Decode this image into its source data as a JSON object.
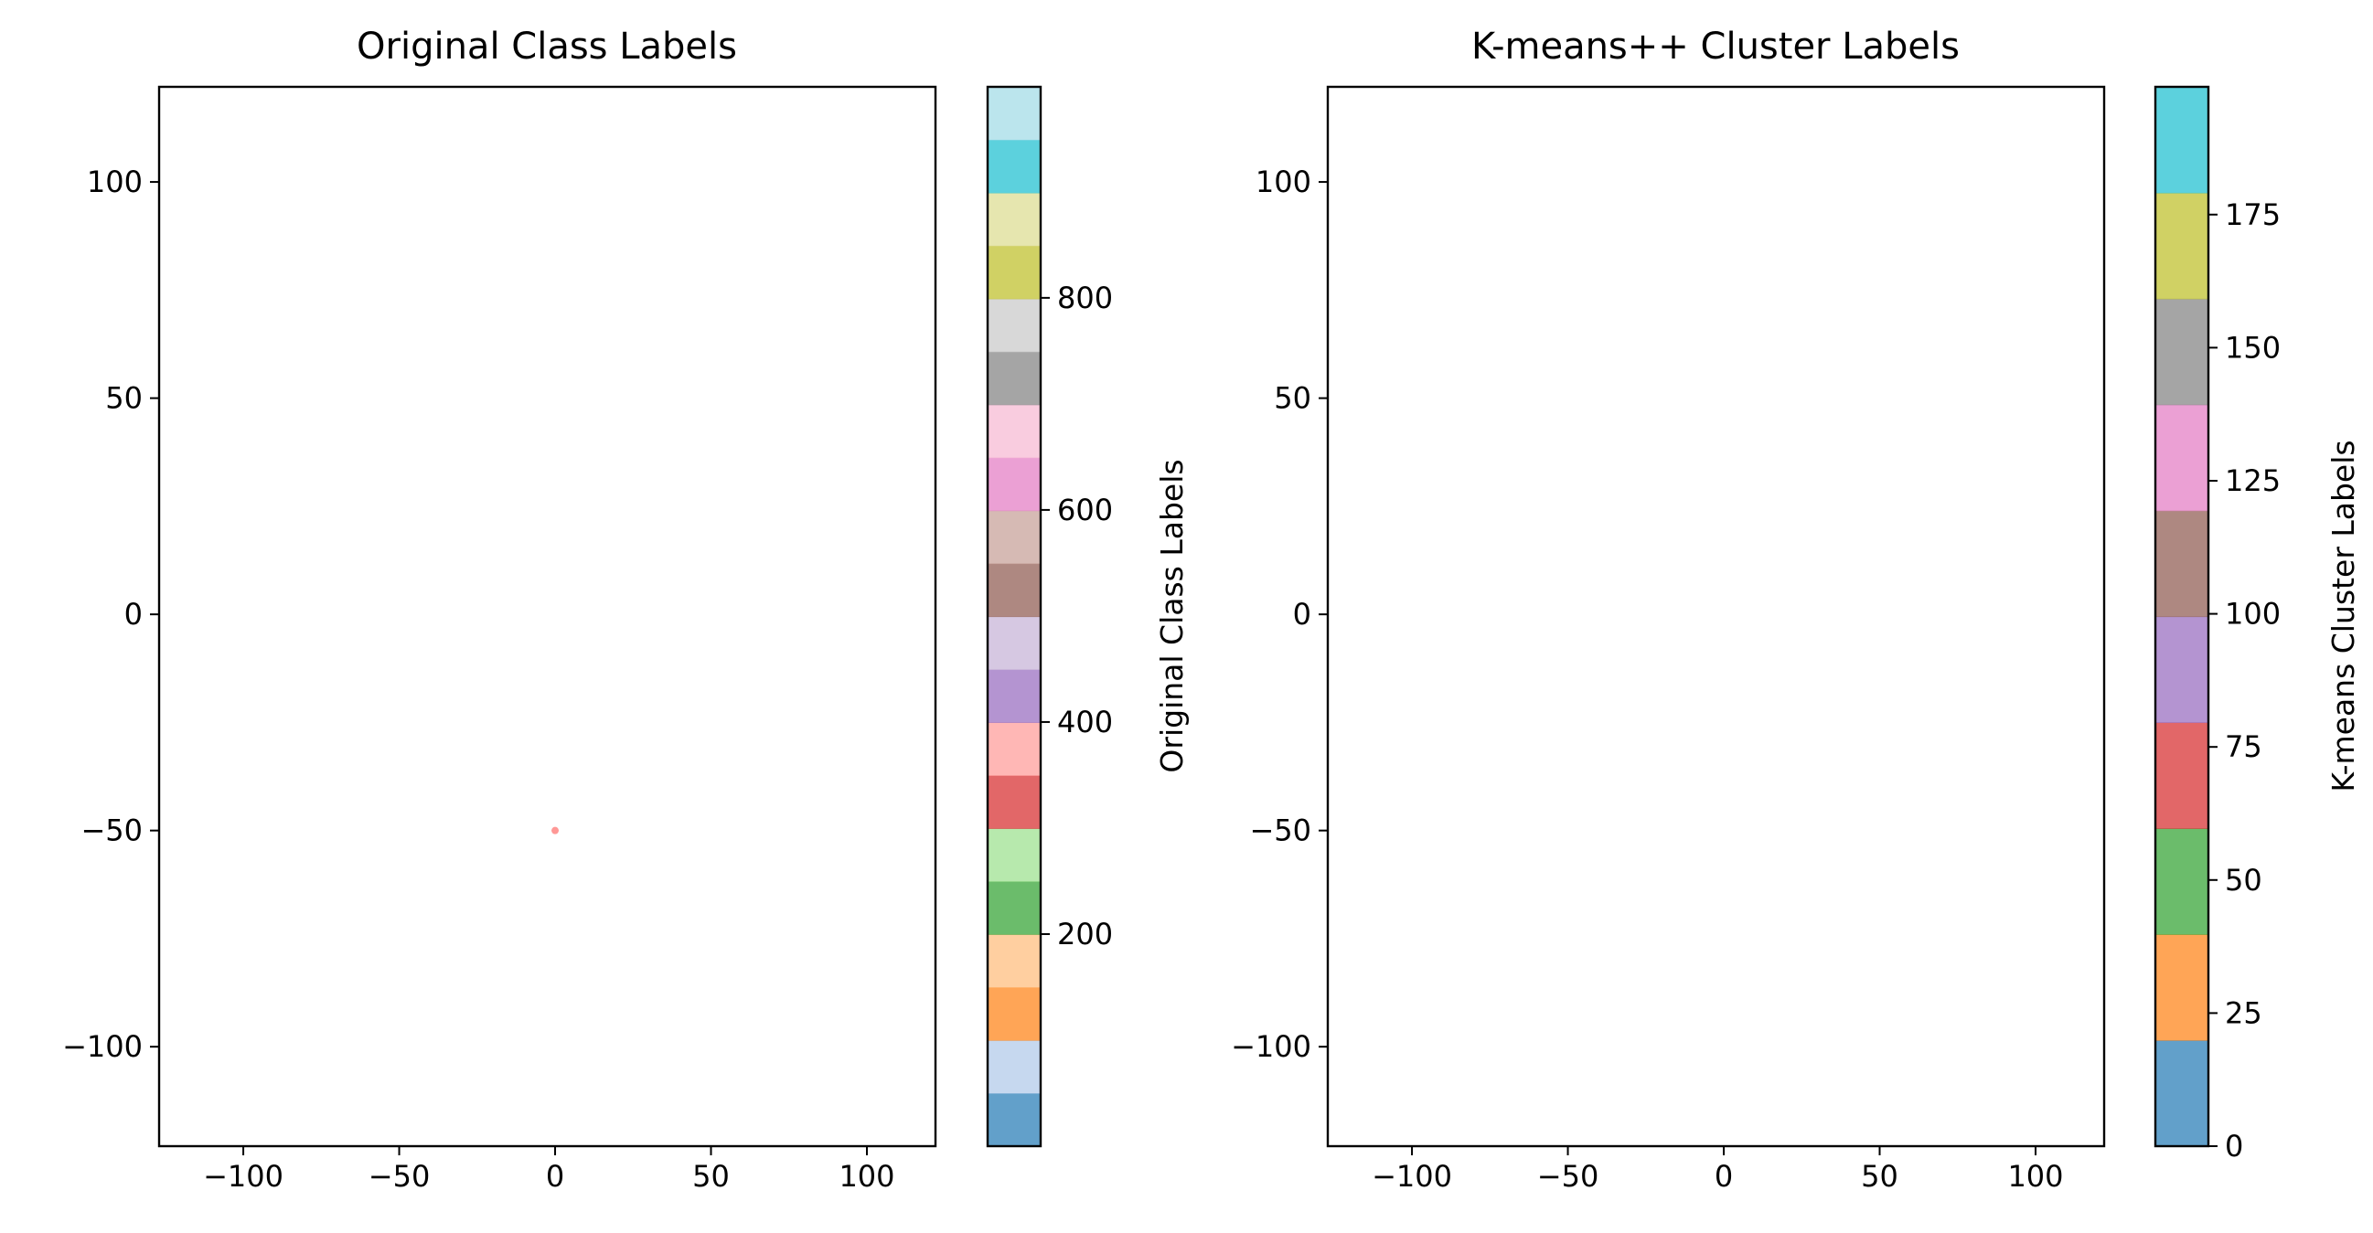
{
  "chart_data": [
    {
      "type": "scatter",
      "title": "Original Class Labels",
      "xlabel": "",
      "ylabel": "",
      "xlim": [
        -127,
        122
      ],
      "ylim": [
        -123,
        122
      ],
      "xticks": [
        -100,
        -50,
        0,
        50,
        100
      ],
      "yticks": [
        -100,
        -50,
        0,
        50,
        100
      ],
      "xtick_labels": [
        "−100",
        "−50",
        "0",
        "50",
        "100"
      ],
      "ytick_labels": [
        "−100",
        "−50",
        "0",
        "50",
        "100"
      ],
      "grid": false,
      "colormap": "tab20",
      "colorbar": {
        "label": "Original Class Labels",
        "range": [
          0,
          999
        ],
        "ticks": [
          200,
          400,
          600,
          800
        ],
        "tick_labels": [
          "200",
          "400",
          "600",
          "800"
        ],
        "colors": [
          "#1f77b4",
          "#aec7e8",
          "#ff7f0e",
          "#ffbb78",
          "#2ca02c",
          "#98df8a",
          "#d62728",
          "#ff9896",
          "#9467bd",
          "#c5b0d5",
          "#8c564b",
          "#c49c94",
          "#e377c2",
          "#f7b6d2",
          "#7f7f7f",
          "#c7c7c7",
          "#bcbd22",
          "#dbdb8d",
          "#17becf",
          "#9edae5"
        ]
      },
      "clusters": [
        {
          "x": 0,
          "y": -50,
          "label": 350
        }
      ]
    },
    {
      "type": "scatter",
      "title": "K-means++ Cluster Labels",
      "xlabel": "",
      "ylabel": "",
      "xlim": [
        -127,
        122
      ],
      "ylim": [
        -123,
        122
      ],
      "xticks": [
        -100,
        -50,
        0,
        50,
        100
      ],
      "yticks": [
        -100,
        -50,
        0,
        50,
        100
      ],
      "xtick_labels": [
        "−100",
        "−50",
        "0",
        "50",
        "100"
      ],
      "ytick_labels": [
        "−100",
        "−50",
        "0",
        "50",
        "100"
      ],
      "grid": false,
      "colormap": "tab10",
      "colorbar": {
        "label": "K-means Cluster Labels",
        "range": [
          0,
          199
        ],
        "ticks": [
          0,
          25,
          50,
          75,
          100,
          125,
          150,
          175
        ],
        "tick_labels": [
          "0",
          "25",
          "50",
          "75",
          "100",
          "125",
          "150",
          "175"
        ],
        "colors": [
          "#1f77b4",
          "#ff7f0e",
          "#2ca02c",
          "#d62728",
          "#9467bd",
          "#8c564b",
          "#e377c2",
          "#7f7f7f",
          "#bcbd22",
          "#17becf"
        ]
      },
      "clusters": []
    }
  ]
}
